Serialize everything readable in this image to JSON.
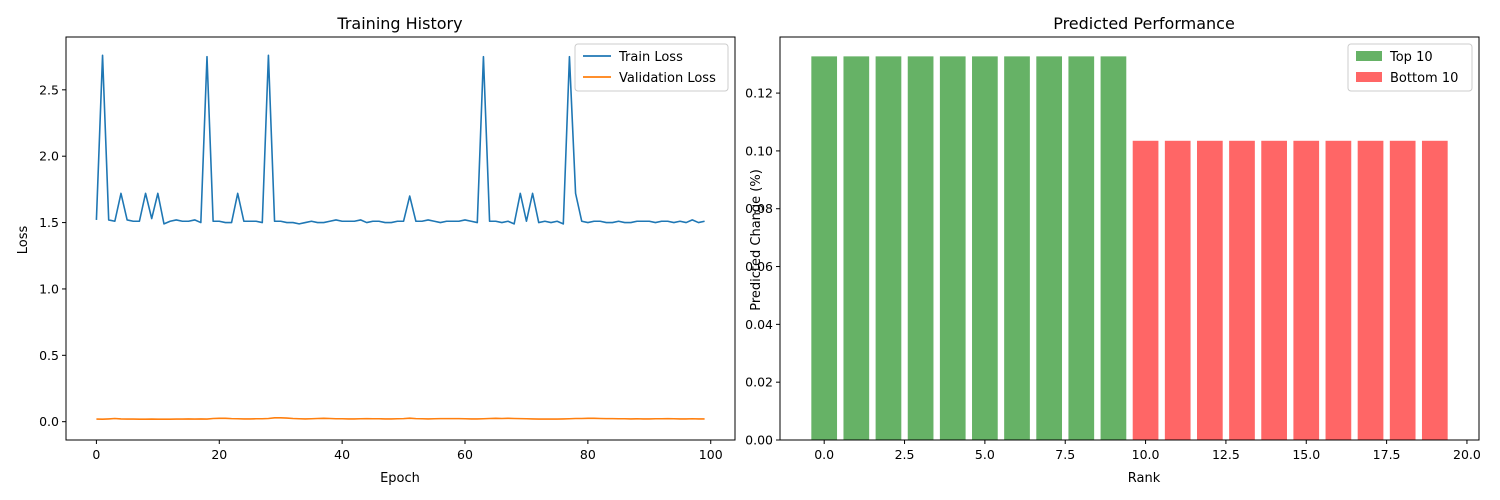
{
  "chart_data": [
    {
      "type": "line",
      "title": "Training History",
      "xlabel": "Epoch",
      "ylabel": "Loss",
      "xlim": [
        -4.95,
        103.95
      ],
      "ylim": [
        -0.138,
        2.898
      ],
      "xticks": [
        0,
        20,
        40,
        60,
        80,
        100
      ],
      "yticks": [
        0.0,
        0.5,
        1.0,
        1.5,
        2.0,
        2.5
      ],
      "xtick_labels": [
        "0",
        "20",
        "40",
        "60",
        "80",
        "100"
      ],
      "ytick_labels": [
        "0.0",
        "0.5",
        "1.0",
        "1.5",
        "2.0",
        "2.5"
      ],
      "grid": false,
      "legend_position": "upper right",
      "series": [
        {
          "name": "Train Loss",
          "color": "#1f77b4",
          "x": [
            0,
            1,
            2,
            3,
            4,
            5,
            6,
            7,
            8,
            9,
            10,
            11,
            12,
            13,
            14,
            15,
            16,
            17,
            18,
            19,
            20,
            21,
            22,
            23,
            24,
            25,
            26,
            27,
            28,
            29,
            30,
            31,
            32,
            33,
            34,
            35,
            36,
            37,
            38,
            39,
            40,
            41,
            42,
            43,
            44,
            45,
            46,
            47,
            48,
            49,
            50,
            51,
            52,
            53,
            54,
            55,
            56,
            57,
            58,
            59,
            60,
            61,
            62,
            63,
            64,
            65,
            66,
            67,
            68,
            69,
            70,
            71,
            72,
            73,
            74,
            75,
            76,
            77,
            78,
            79,
            80,
            81,
            82,
            83,
            84,
            85,
            86,
            87,
            88,
            89,
            90,
            91,
            92,
            93,
            94,
            95,
            96,
            97,
            98,
            99
          ],
          "values": [
            1.52,
            2.76,
            1.52,
            1.51,
            1.72,
            1.52,
            1.51,
            1.51,
            1.72,
            1.53,
            1.72,
            1.49,
            1.51,
            1.52,
            1.51,
            1.51,
            1.52,
            1.5,
            2.75,
            1.51,
            1.51,
            1.5,
            1.5,
            1.72,
            1.51,
            1.51,
            1.51,
            1.5,
            2.76,
            1.51,
            1.51,
            1.5,
            1.5,
            1.49,
            1.5,
            1.51,
            1.5,
            1.5,
            1.51,
            1.52,
            1.51,
            1.51,
            1.51,
            1.52,
            1.5,
            1.51,
            1.51,
            1.5,
            1.5,
            1.51,
            1.51,
            1.7,
            1.51,
            1.51,
            1.52,
            1.51,
            1.5,
            1.51,
            1.51,
            1.51,
            1.52,
            1.51,
            1.5,
            2.75,
            1.51,
            1.51,
            1.5,
            1.51,
            1.49,
            1.72,
            1.51,
            1.72,
            1.5,
            1.51,
            1.5,
            1.51,
            1.49,
            2.75,
            1.72,
            1.51,
            1.5,
            1.51,
            1.51,
            1.5,
            1.5,
            1.51,
            1.5,
            1.5,
            1.51,
            1.51,
            1.51,
            1.5,
            1.51,
            1.51,
            1.5,
            1.51,
            1.5,
            1.52,
            1.5,
            1.51
          ]
        },
        {
          "name": "Validation Loss",
          "color": "#ff7f0e",
          "x": [
            0,
            1,
            2,
            3,
            4,
            5,
            6,
            7,
            8,
            9,
            10,
            11,
            12,
            13,
            14,
            15,
            16,
            17,
            18,
            19,
            20,
            21,
            22,
            23,
            24,
            25,
            26,
            27,
            28,
            29,
            30,
            31,
            32,
            33,
            34,
            35,
            36,
            37,
            38,
            39,
            40,
            41,
            42,
            43,
            44,
            45,
            46,
            47,
            48,
            49,
            50,
            51,
            52,
            53,
            54,
            55,
            56,
            57,
            58,
            59,
            60,
            61,
            62,
            63,
            64,
            65,
            66,
            67,
            68,
            69,
            70,
            71,
            72,
            73,
            74,
            75,
            76,
            77,
            78,
            79,
            80,
            81,
            82,
            83,
            84,
            85,
            86,
            87,
            88,
            89,
            90,
            91,
            92,
            93,
            94,
            95,
            96,
            97,
            98,
            99
          ],
          "values": [
            0.02,
            0.019,
            0.021,
            0.024,
            0.021,
            0.02,
            0.02,
            0.019,
            0.019,
            0.02,
            0.019,
            0.019,
            0.019,
            0.02,
            0.02,
            0.021,
            0.02,
            0.021,
            0.02,
            0.024,
            0.025,
            0.025,
            0.023,
            0.022,
            0.021,
            0.021,
            0.022,
            0.022,
            0.024,
            0.029,
            0.029,
            0.027,
            0.024,
            0.022,
            0.021,
            0.022,
            0.024,
            0.025,
            0.024,
            0.022,
            0.022,
            0.021,
            0.021,
            0.022,
            0.023,
            0.022,
            0.022,
            0.021,
            0.021,
            0.022,
            0.023,
            0.026,
            0.023,
            0.022,
            0.021,
            0.022,
            0.023,
            0.023,
            0.023,
            0.023,
            0.022,
            0.021,
            0.021,
            0.022,
            0.024,
            0.025,
            0.024,
            0.025,
            0.024,
            0.023,
            0.022,
            0.021,
            0.02,
            0.02,
            0.02,
            0.02,
            0.021,
            0.022,
            0.024,
            0.024,
            0.025,
            0.025,
            0.024,
            0.023,
            0.023,
            0.022,
            0.022,
            0.021,
            0.022,
            0.021,
            0.021,
            0.022,
            0.022,
            0.023,
            0.022,
            0.021,
            0.021,
            0.022,
            0.021,
            0.021
          ]
        }
      ]
    },
    {
      "type": "bar",
      "title": "Predicted Performance",
      "xlabel": "Rank",
      "ylabel": "Predicted Change (%)",
      "xlim": [
        -1.375,
        20.375
      ],
      "ylim": [
        0.0,
        0.1394
      ],
      "xticks": [
        0.0,
        2.5,
        5.0,
        7.5,
        10.0,
        12.5,
        15.0,
        17.5,
        20.0
      ],
      "yticks": [
        0.0,
        0.02,
        0.04,
        0.06,
        0.08,
        0.1,
        0.12
      ],
      "xtick_labels": [
        "0.0",
        "2.5",
        "5.0",
        "7.5",
        "10.0",
        "12.5",
        "15.0",
        "17.5",
        "20.0"
      ],
      "ytick_labels": [
        "0.00",
        "0.02",
        "0.04",
        "0.06",
        "0.08",
        "0.10",
        "0.12"
      ],
      "grid": false,
      "legend_position": "upper right",
      "bar_width": 0.8,
      "series": [
        {
          "name": "Top 10",
          "color": "#66b266",
          "x": [
            0,
            1,
            2,
            3,
            4,
            5,
            6,
            7,
            8,
            9
          ],
          "values": [
            0.1327,
            0.1327,
            0.1327,
            0.1327,
            0.1327,
            0.1327,
            0.1327,
            0.1327,
            0.1327,
            0.1327
          ]
        },
        {
          "name": "Bottom 10",
          "color": "#ff6666",
          "x": [
            10,
            11,
            12,
            13,
            14,
            15,
            16,
            17,
            18,
            19
          ],
          "values": [
            0.1035,
            0.1035,
            0.1035,
            0.1035,
            0.1035,
            0.1035,
            0.1035,
            0.1035,
            0.1035,
            0.1035
          ]
        }
      ]
    }
  ]
}
